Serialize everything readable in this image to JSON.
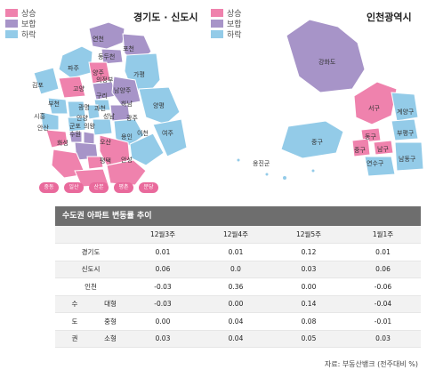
{
  "colors": {
    "rise": "#ef82ad",
    "flat": "#a794c8",
    "fall": "#93cbe8",
    "border": "#ffffff"
  },
  "legend": [
    {
      "key": "rise",
      "label": "상승"
    },
    {
      "key": "flat",
      "label": "보합"
    },
    {
      "key": "fall",
      "label": "하락"
    }
  ],
  "gyeonggi": {
    "title": "경기도 · 신도시",
    "regions": [
      "연천",
      "포천",
      "파주",
      "동두천",
      "양주",
      "가평",
      "김포",
      "고양",
      "의정부",
      "구리",
      "남양주",
      "부천",
      "광명",
      "과천",
      "하남",
      "양평",
      "시흥",
      "안양",
      "성남",
      "광주",
      "안산",
      "군포",
      "의왕",
      "수원",
      "이천",
      "여주",
      "화성",
      "오산",
      "용인",
      "평택",
      "안성"
    ],
    "pills": [
      "중동",
      "일산",
      "산본",
      "평촌",
      "분당"
    ]
  },
  "incheon": {
    "title": "인천광역시",
    "regions": [
      "강화도",
      "서구",
      "계양구",
      "부평구",
      "동구",
      "중구",
      "남구",
      "연수구",
      "남동구",
      "옹진군"
    ]
  },
  "table": {
    "title": "수도권 아파트 변동률 추이",
    "columns": [
      "12월3주",
      "12월4주",
      "12월5주",
      "1월1주"
    ],
    "group_label": [
      "수",
      "도",
      "권"
    ],
    "rows": [
      {
        "label": "경기도",
        "values": [
          "0.01",
          "0.01",
          "0.12",
          "0.01"
        ]
      },
      {
        "label": "신도시",
        "values": [
          "0.06",
          "0.0",
          "0.03",
          "0.06"
        ]
      },
      {
        "label": "인천",
        "values": [
          "-0.03",
          "0.36",
          "0.00",
          "-0.06"
        ]
      },
      {
        "label": "대형",
        "values": [
          "-0.03",
          "0.00",
          "0.14",
          "-0.04"
        ]
      },
      {
        "label": "중형",
        "values": [
          "0.00",
          "0.04",
          "0.08",
          "-0.01"
        ]
      },
      {
        "label": "소형",
        "values": [
          "0.03",
          "0.04",
          "0.05",
          "0.03"
        ]
      }
    ]
  },
  "source": "자료: 부동산뱅크 (전주대비 %)"
}
